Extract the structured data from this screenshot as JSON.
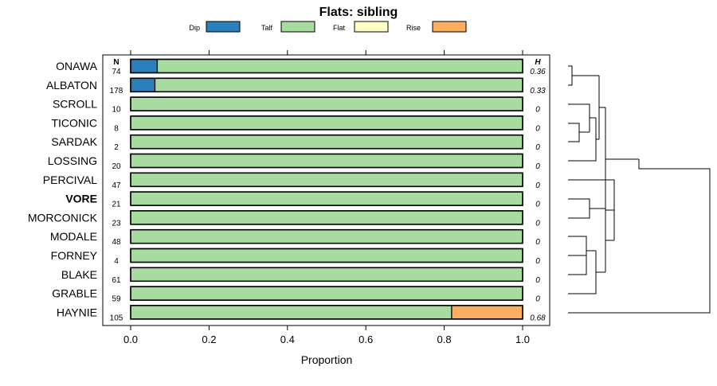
{
  "chart_data": {
    "type": "bar",
    "orientation": "horizontal",
    "stacked": true,
    "title": "Flats: sibling",
    "xlabel": "Proportion",
    "xlim": [
      0,
      1
    ],
    "xticks": [
      0.0,
      0.2,
      0.4,
      0.6,
      0.8,
      1.0
    ],
    "xtick_labels": [
      "0.0",
      "0.2",
      "0.4",
      "0.6",
      "0.8",
      "1.0"
    ],
    "legend": [
      {
        "name": "Dip",
        "color": "#2b7fbb"
      },
      {
        "name": "Talf",
        "color": "#a8dba0"
      },
      {
        "name": "Flat",
        "color": "#ffffc6"
      },
      {
        "name": "Rise",
        "color": "#fdae61"
      }
    ],
    "n_header": "N",
    "h_header": "H",
    "highlighted_category": "VORE",
    "categories": [
      "ONAWA",
      "ALBATON",
      "SCROLL",
      "TICONIC",
      "SARDAK",
      "LOSSING",
      "PERCIVAL",
      "VORE",
      "MORCONICK",
      "MODALE",
      "FORNEY",
      "BLAKE",
      "GRABLE",
      "HAYNIE"
    ],
    "n": [
      "74",
      "178",
      "10",
      "8",
      "2",
      "20",
      "47",
      "21",
      "23",
      "48",
      "4",
      "61",
      "59",
      "105"
    ],
    "h": [
      "0.36",
      "0.33",
      "0",
      "0",
      "0",
      "0",
      "0",
      "0",
      "0",
      "0",
      "0",
      "0",
      "0",
      "0.68"
    ],
    "series": [
      {
        "name": "Dip",
        "values": [
          0.068,
          0.062,
          0,
          0,
          0,
          0,
          0,
          0,
          0,
          0,
          0,
          0,
          0,
          0
        ]
      },
      {
        "name": "Talf",
        "values": [
          0.932,
          0.938,
          1,
          1,
          1,
          1,
          1,
          1,
          1,
          1,
          1,
          1,
          1,
          0.819
        ]
      },
      {
        "name": "Flat",
        "values": [
          0,
          0,
          0,
          0,
          0,
          0,
          0,
          0,
          0,
          0,
          0,
          0,
          0,
          0
        ]
      },
      {
        "name": "Rise",
        "values": [
          0,
          0,
          0,
          0,
          0,
          0,
          0,
          0,
          0,
          0,
          0,
          0,
          0,
          0.181
        ]
      }
    ]
  }
}
